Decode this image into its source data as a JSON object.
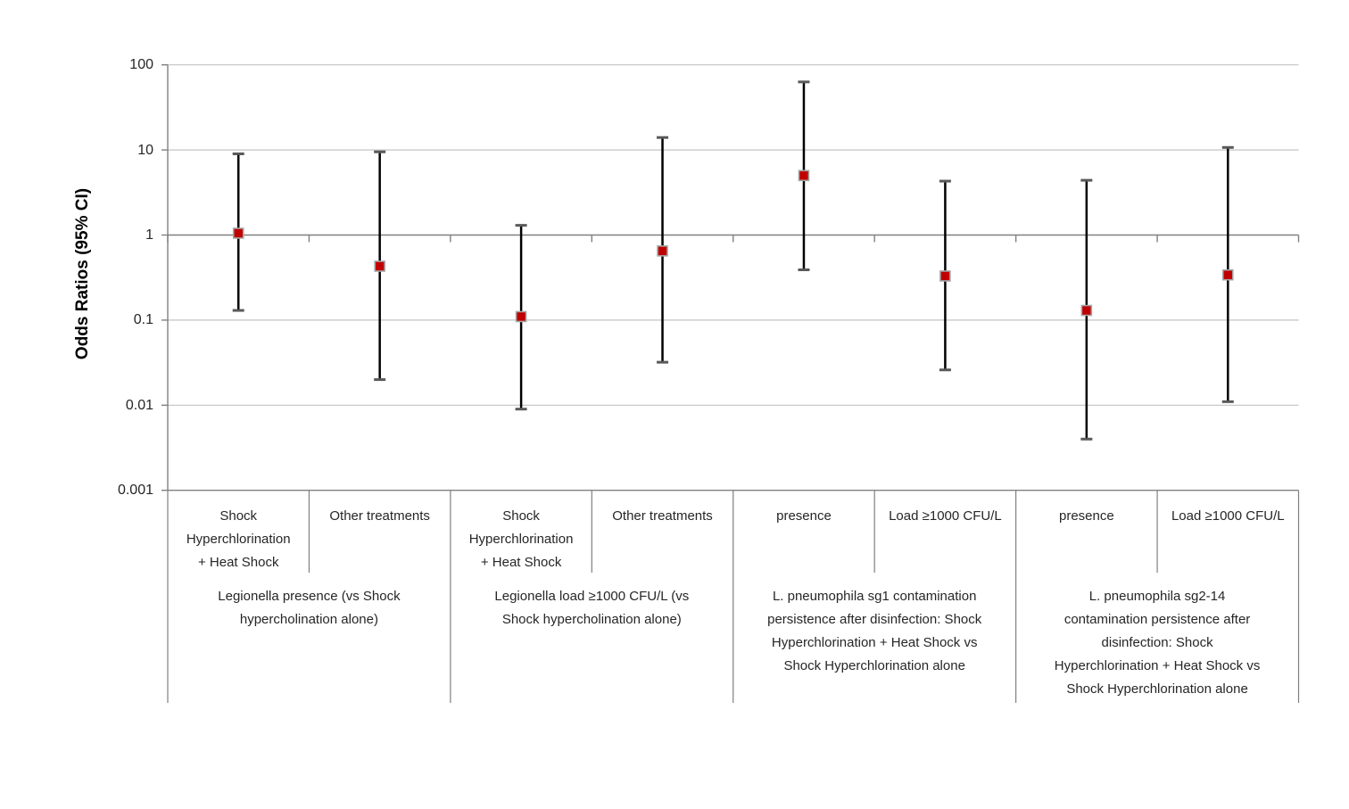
{
  "chart_data": {
    "type": "scatter",
    "subtype": "forest-plot-with-error-bars",
    "title": "",
    "xlabel": "",
    "ylabel": "Odds Ratios (95% CI)",
    "scale": "log10",
    "ylim": [
      0.001,
      100
    ],
    "grid": "horizontal-log-decades",
    "legend": "none",
    "ytick_labels": [
      "100",
      "10",
      "1",
      "0.1",
      "0.01",
      "0.001"
    ],
    "ytick_values": [
      100,
      10,
      1,
      0.1,
      0.01,
      0.001
    ],
    "groups": [
      {
        "label": "Legionella presence (vs Shock\nhypercholination alone)",
        "points": [
          {
            "category": "Shock\nHyperchlorination\n+ Heat Shock",
            "or": 1.05,
            "ci_low": 0.13,
            "ci_high": 9.0
          },
          {
            "category": "Other treatments",
            "or": 0.43,
            "ci_low": 0.02,
            "ci_high": 9.5
          }
        ]
      },
      {
        "label": "Legionella load ≥1000 CFU/L (vs\nShock hypercholination alone)",
        "points": [
          {
            "category": "Shock\nHyperchlorination\n+ Heat Shock",
            "or": 0.11,
            "ci_low": 0.009,
            "ci_high": 1.3
          },
          {
            "category": "Other treatments",
            "or": 0.65,
            "ci_low": 0.032,
            "ci_high": 14
          }
        ]
      },
      {
        "label": "L. pneumophila sg1 contamination\npersistence after disinfection: Shock\nHyperchlorination + Heat Shock vs\nShock Hyperchlorination alone",
        "points": [
          {
            "category": "presence",
            "or": 5.0,
            "ci_low": 0.39,
            "ci_high": 63
          },
          {
            "category": "Load ≥1000 CFU/L",
            "or": 0.33,
            "ci_low": 0.026,
            "ci_high": 4.3
          }
        ]
      },
      {
        "label": "L. pneumophila sg2-14\ncontamination persistence after\ndisinfection: Shock\nHyperchlorination + Heat Shock vs\nShock Hyperchlorination alone",
        "points": [
          {
            "category": "presence",
            "or": 0.13,
            "ci_low": 0.004,
            "ci_high": 4.4
          },
          {
            "category": "Load ≥1000 CFU/L",
            "or": 0.34,
            "ci_low": 0.011,
            "ci_high": 10.7
          }
        ]
      }
    ],
    "colors": {
      "gridline": "#C3C3C3",
      "axis": "#808080",
      "error_bar": "#000000",
      "cap": "#595959",
      "marker_fill": "#C00000",
      "marker_stroke": "#A6A6A6",
      "text": "#262626"
    }
  }
}
